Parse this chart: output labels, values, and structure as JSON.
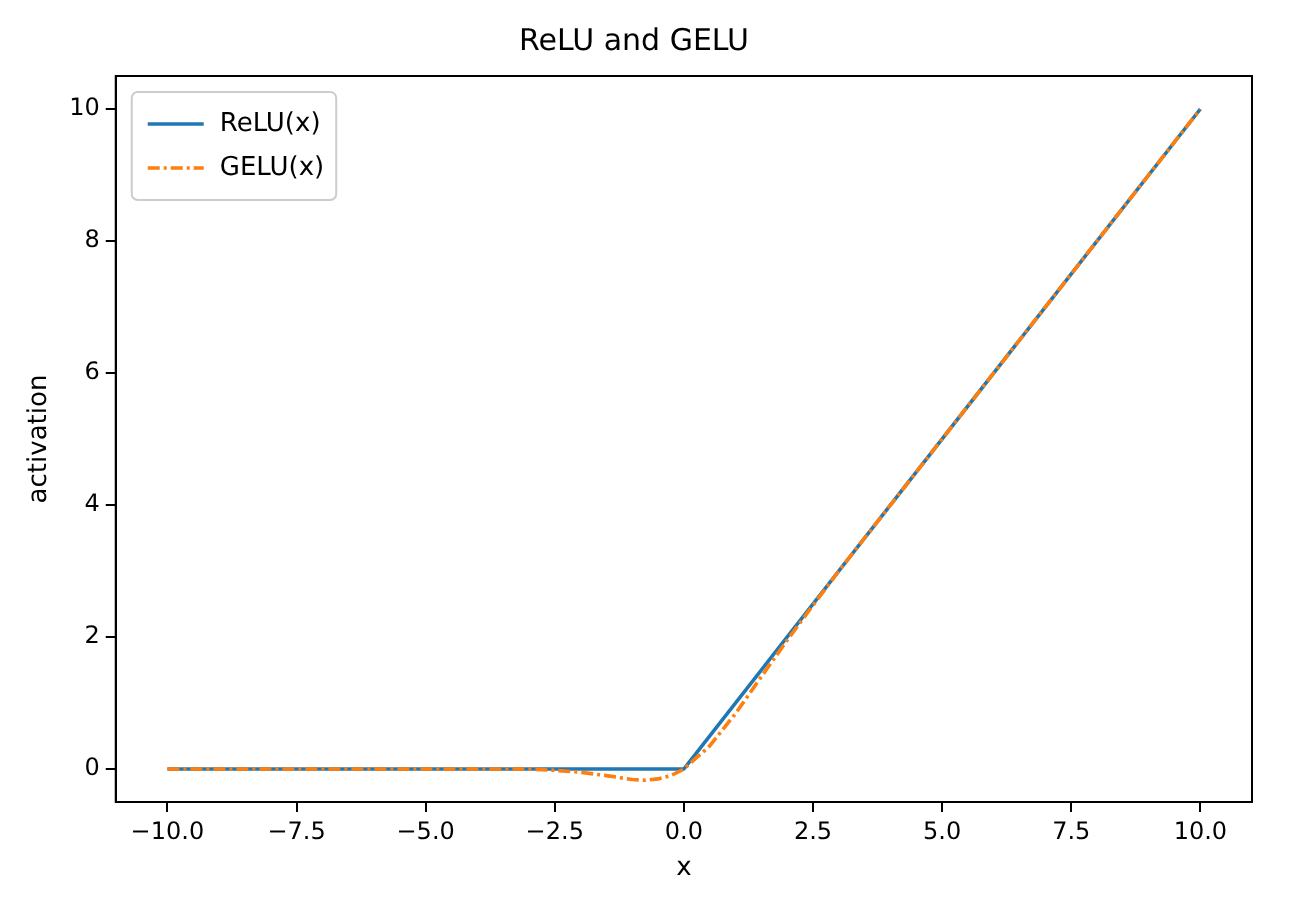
{
  "chart_data": {
    "type": "line",
    "title": "ReLU and GELU",
    "xlabel": "x",
    "ylabel": "activation",
    "series": [
      {
        "name": "ReLU(x)",
        "color": "#1f77b4",
        "x": [
          -10,
          0,
          10
        ],
        "values": [
          0,
          0,
          10
        ],
        "line_style": "solid"
      },
      {
        "name": "GELU(x)",
        "color": "#ff7f0e",
        "x": [
          -10,
          -4,
          -3,
          -2.5,
          -2,
          -1.5,
          -1,
          -0.75,
          -0.5,
          -0.25,
          0,
          0.5,
          1,
          1.5,
          2,
          2.5,
          3,
          4,
          10
        ],
        "values": [
          0,
          0,
          0,
          -0.02,
          -0.05,
          -0.1,
          -0.16,
          -0.17,
          -0.15,
          -0.1,
          0,
          0.35,
          0.84,
          1.4,
          1.95,
          2.48,
          3,
          4,
          10
        ],
        "line_style": "dashed"
      }
    ],
    "xlim": [
      -11,
      11
    ],
    "ylim": [
      -0.5,
      10.5
    ],
    "xticks": [
      {
        "value": -10,
        "label": "−10.0"
      },
      {
        "value": -7.5,
        "label": "−7.5"
      },
      {
        "value": -5,
        "label": "−5.0"
      },
      {
        "value": -2.5,
        "label": "−2.5"
      },
      {
        "value": 0,
        "label": "0.0"
      },
      {
        "value": 2.5,
        "label": "2.5"
      },
      {
        "value": 5,
        "label": "5.0"
      },
      {
        "value": 7.5,
        "label": "7.5"
      },
      {
        "value": 10,
        "label": "10.0"
      }
    ],
    "yticks": [
      0,
      2,
      4,
      6,
      8,
      10
    ],
    "legend": "top left",
    "grid": false,
    "marker": "none"
  }
}
